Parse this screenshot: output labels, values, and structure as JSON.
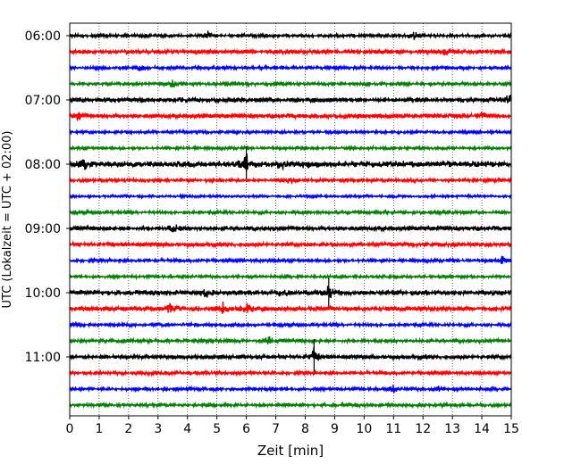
{
  "chart_data": {
    "type": "line",
    "title": "",
    "xlabel": "Zeit  [min]",
    "ylabel": "UTC (Lokalzeit = UTC + 02:00)",
    "xlim": [
      0,
      15
    ],
    "x_ticks": [
      "0",
      "1",
      "2",
      "3",
      "4",
      "5",
      "6",
      "7",
      "8",
      "9",
      "10",
      "11",
      "12",
      "13",
      "14",
      "15"
    ],
    "y_tick_labels": [
      "06:00",
      "07:00",
      "08:00",
      "09:00",
      "10:00",
      "11:00"
    ],
    "grid": "vertical dotted lines at each minute",
    "trace_start_times": [
      "06:00",
      "06:15",
      "06:30",
      "06:45",
      "07:00",
      "07:15",
      "07:30",
      "07:45",
      "08:00",
      "08:15",
      "08:30",
      "08:45",
      "09:00",
      "09:15",
      "09:30",
      "09:45",
      "10:00",
      "10:15",
      "10:30",
      "10:45",
      "11:00",
      "11:15",
      "11:30",
      "11:45"
    ],
    "trace_colors": [
      "#000000",
      "#ff0000",
      "#0000ff",
      "#008000"
    ],
    "trace_amplitude": [
      1.0,
      1.2,
      1.0,
      1.0,
      1.5,
      1.4,
      0.9,
      0.9,
      1.8,
      1.0,
      0.8,
      1.0,
      1.4,
      1.2,
      1.0,
      0.9,
      1.5,
      1.4,
      1.0,
      1.1,
      1.2,
      1.0,
      1.0,
      1.0
    ],
    "events": [
      {
        "trace": "06:00",
        "minute": 4.7,
        "strength": 2
      },
      {
        "trace": "06:00",
        "minute": 11.7,
        "strength": 2.5
      },
      {
        "trace": "06:15",
        "minute": 12.8,
        "strength": 2
      },
      {
        "trace": "06:30",
        "minute": 2.4,
        "strength": 1.5
      },
      {
        "trace": "06:45",
        "minute": 3.5,
        "strength": 2
      },
      {
        "trace": "07:00",
        "minute": 14.9,
        "strength": 3
      },
      {
        "trace": "07:15",
        "minute": 0.3,
        "strength": 2.5
      },
      {
        "trace": "07:15",
        "minute": 14.0,
        "strength": 2.5
      },
      {
        "trace": "08:00",
        "minute": 0.5,
        "strength": 2.5
      },
      {
        "trace": "08:00",
        "minute": 6.0,
        "strength": 5
      },
      {
        "trace": "08:00",
        "minute": 7.2,
        "strength": 3
      },
      {
        "trace": "08:00",
        "minute": 8.0,
        "strength": 2.5
      },
      {
        "trace": "08:15",
        "minute": 7.5,
        "strength": 2
      },
      {
        "trace": "09:00",
        "minute": 3.5,
        "strength": 2.5
      },
      {
        "trace": "09:30",
        "minute": 14.7,
        "strength": 2
      },
      {
        "trace": "10:00",
        "minute": 4.6,
        "strength": 2.5
      },
      {
        "trace": "10:00",
        "minute": 7.2,
        "strength": 2.5
      },
      {
        "trace": "10:00",
        "minute": 8.8,
        "strength": 4
      },
      {
        "trace": "10:15",
        "minute": 3.4,
        "strength": 2.5
      },
      {
        "trace": "10:15",
        "minute": 5.2,
        "strength": 3
      },
      {
        "trace": "10:15",
        "minute": 6.0,
        "strength": 2.5
      },
      {
        "trace": "10:45",
        "minute": 6.8,
        "strength": 2.5
      },
      {
        "trace": "11:00",
        "minute": 8.3,
        "strength": 5
      },
      {
        "trace": "11:30",
        "minute": 11.0,
        "strength": 2
      },
      {
        "trace": "11:30",
        "minute": 12.5,
        "strength": 2
      }
    ]
  }
}
